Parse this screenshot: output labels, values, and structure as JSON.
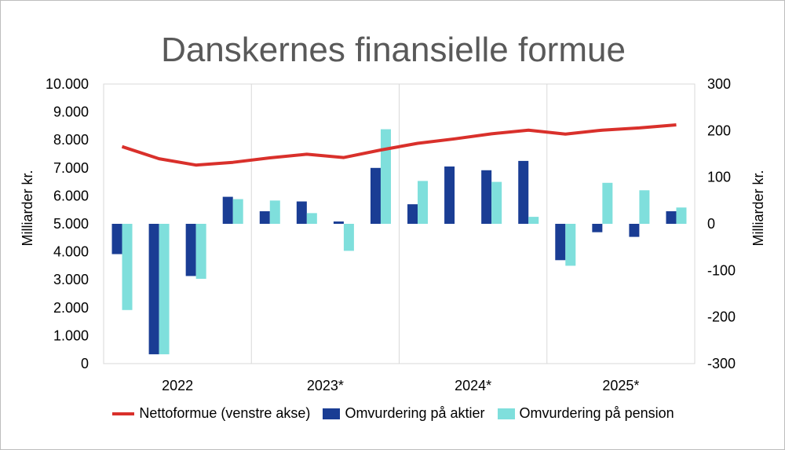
{
  "chart_data": {
    "type": "bar",
    "title": "Danskernes finansielle formue",
    "ylabel_left": "Milliarder kr.",
    "ylabel_right": "Milliarder kr.",
    "ylim_left": [
      0,
      10000
    ],
    "ylim_right": [
      -300,
      300
    ],
    "yticks_left": [
      "10.000",
      "9.000",
      "8.000",
      "7.000",
      "6.000",
      "5.000",
      "4.000",
      "3.000",
      "2.000",
      "1.000",
      "0"
    ],
    "yticks_right": [
      "300",
      "200",
      "100",
      "0",
      "-100",
      "-200",
      "-300"
    ],
    "year_labels": [
      "2022",
      "2023*",
      "2024*",
      "2025*"
    ],
    "quarters_per_year": 4,
    "grid": "vertical lines between years",
    "legend_position": "bottom",
    "series": [
      {
        "name": "Nettoformue (venstre akse)",
        "type": "line",
        "axis": "left",
        "color": "#d9302b",
        "values": [
          7760,
          7330,
          7100,
          7200,
          7360,
          7490,
          7370,
          7640,
          7880,
          8040,
          8220,
          8350,
          8210,
          8350,
          8430,
          8540
        ]
      },
      {
        "name": "Omvurdering på aktier",
        "type": "bar",
        "axis": "right",
        "color": "#1a3d94",
        "values": [
          -65,
          -280,
          -112,
          58,
          27,
          48,
          5,
          120,
          42,
          123,
          115,
          135,
          -78,
          -18,
          -28,
          27
        ]
      },
      {
        "name": "Omvurdering på pension",
        "type": "bar",
        "axis": "right",
        "color": "#7fdfdc",
        "values": [
          -185,
          -280,
          -118,
          53,
          50,
          23,
          -58,
          203,
          92,
          null,
          90,
          15,
          -90,
          88,
          72,
          35
        ]
      }
    ]
  }
}
